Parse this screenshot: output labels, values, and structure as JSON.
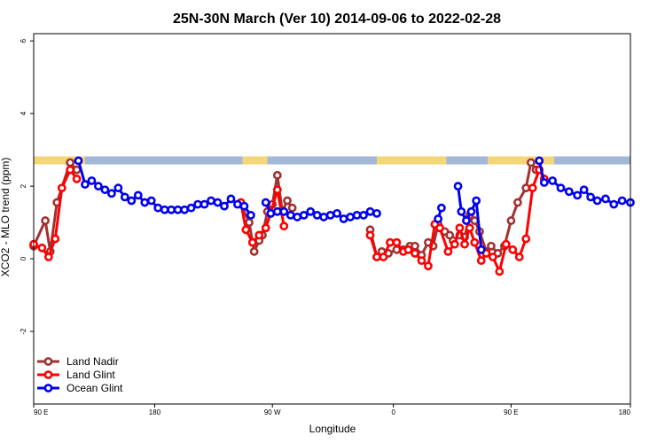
{
  "chart_data": {
    "type": "line",
    "title": "25N-30N March (Ver 10)   2014-09-06 to 2022-02-28",
    "xlabel": "Longitude",
    "ylabel": "XCO2 - MLO trend (ppm)",
    "xlim": [
      0,
      360
    ],
    "ylim": [
      -4,
      6.2
    ],
    "x_ticks": [
      {
        "value": 0,
        "label": "90 E"
      },
      {
        "value": 73,
        "label": "180"
      },
      {
        "value": 144,
        "label": "90 W"
      },
      {
        "value": 217,
        "label": "0"
      },
      {
        "value": 288,
        "label": "90 E"
      },
      {
        "value": 360,
        "label": "180"
      }
    ],
    "y_ticks": [
      {
        "value": -2,
        "label": "-2"
      },
      {
        "value": 0,
        "label": "0"
      },
      {
        "value": 2,
        "label": "2"
      },
      {
        "value": 4,
        "label": "4"
      },
      {
        "value": 6,
        "label": "6"
      }
    ],
    "legend_position": "bottom-left",
    "grid": false,
    "land_mask": {
      "y_range": [
        2.6,
        2.82
      ],
      "ocean_color": "#a2b8d8",
      "land_color": "#f5d677",
      "land_segments": [
        [
          0,
          31
        ],
        [
          126,
          141
        ],
        [
          207,
          249
        ],
        [
          274,
          314
        ]
      ]
    },
    "series": [
      {
        "name": "Land Nadir",
        "color": "#a23232",
        "segments": [
          [
            [
              0,
              0.35
            ],
            [
              7,
              1.05
            ],
            [
              10,
              0.2
            ],
            [
              14,
              1.55
            ],
            [
              22,
              2.65
            ],
            [
              26,
              2.45
            ]
          ],
          [
            [
              125,
              1.5
            ],
            [
              130,
              1.0
            ],
            [
              133,
              0.2
            ],
            [
              136,
              0.5
            ],
            [
              138,
              0.65
            ],
            [
              141,
              1.3
            ],
            [
              144,
              1.5
            ],
            [
              147,
              2.3
            ],
            [
              150,
              1.3
            ],
            [
              153,
              1.6
            ],
            [
              156,
              1.4
            ]
          ],
          [
            [
              203,
              0.8
            ],
            [
              207,
              0.05
            ],
            [
              210,
              0.2
            ],
            [
              214,
              0.15
            ],
            [
              219,
              0.25
            ],
            [
              223,
              0.25
            ],
            [
              227,
              0.35
            ],
            [
              230,
              0.35
            ],
            [
              234,
              0.1
            ],
            [
              238,
              0.45
            ],
            [
              241,
              0.35
            ],
            [
              244,
              0.95
            ],
            [
              248,
              0.75
            ],
            [
              251,
              0.65
            ],
            [
              253,
              0.5
            ],
            [
              257,
              0.65
            ],
            [
              260,
              0.6
            ],
            [
              263,
              1.2
            ],
            [
              266,
              1.05
            ],
            [
              269,
              0.75
            ],
            [
              273,
              0.2
            ],
            [
              276,
              0.35
            ],
            [
              280,
              0.15
            ],
            [
              284,
              0.35
            ],
            [
              288,
              1.05
            ],
            [
              292,
              1.55
            ],
            [
              297,
              1.95
            ],
            [
              300,
              2.65
            ],
            [
              303,
              2.45
            ]
          ]
        ]
      },
      {
        "name": "Land Glint",
        "color": "#ff0000",
        "segments": [
          [
            [
              0,
              0.4
            ],
            [
              5,
              0.3
            ],
            [
              9,
              0.05
            ],
            [
              13,
              0.55
            ],
            [
              17,
              1.95
            ],
            [
              22,
              2.45
            ],
            [
              26,
              2.2
            ]
          ],
          [
            [
              125,
              1.55
            ],
            [
              128,
              0.8
            ],
            [
              132,
              0.45
            ],
            [
              136,
              0.65
            ],
            [
              140,
              0.85
            ],
            [
              143,
              1.25
            ],
            [
              147,
              1.9
            ],
            [
              151,
              0.9
            ]
          ],
          [
            [
              203,
              0.65
            ],
            [
              207,
              0.05
            ],
            [
              211,
              0.05
            ],
            [
              215,
              0.45
            ],
            [
              219,
              0.45
            ],
            [
              223,
              0.2
            ],
            [
              226,
              0.25
            ],
            [
              230,
              0.15
            ],
            [
              234,
              -0.05
            ],
            [
              238,
              -0.2
            ],
            [
              242,
              0.95
            ],
            [
              245,
              0.85
            ],
            [
              250,
              0.2
            ],
            [
              254,
              0.4
            ],
            [
              257,
              0.85
            ],
            [
              260,
              0.4
            ],
            [
              263,
              0.85
            ],
            [
              266,
              0.45
            ],
            [
              270,
              -0.05
            ],
            [
              273,
              0.15
            ],
            [
              277,
              0.05
            ],
            [
              281,
              -0.35
            ],
            [
              285,
              0.4
            ],
            [
              289,
              0.25
            ],
            [
              293,
              0.05
            ],
            [
              297,
              0.55
            ],
            [
              301,
              1.95
            ],
            [
              305,
              2.45
            ],
            [
              308,
              2.2
            ]
          ]
        ]
      },
      {
        "name": "Ocean Glint",
        "color": "#0000ee",
        "segments": [
          [
            [
              27,
              2.7
            ],
            [
              31,
              2.05
            ],
            [
              35,
              2.15
            ],
            [
              39,
              2.0
            ],
            [
              43,
              1.9
            ],
            [
              47,
              1.8
            ],
            [
              51,
              1.95
            ],
            [
              55,
              1.7
            ],
            [
              59,
              1.6
            ],
            [
              63,
              1.75
            ],
            [
              67,
              1.55
            ],
            [
              71,
              1.6
            ],
            [
              75,
              1.4
            ],
            [
              79,
              1.35
            ],
            [
              83,
              1.35
            ],
            [
              87,
              1.35
            ],
            [
              91,
              1.35
            ],
            [
              95,
              1.4
            ],
            [
              99,
              1.5
            ],
            [
              103,
              1.5
            ],
            [
              107,
              1.6
            ],
            [
              111,
              1.55
            ],
            [
              115,
              1.45
            ],
            [
              119,
              1.65
            ],
            [
              123,
              1.5
            ],
            [
              127,
              1.45
            ],
            [
              131,
              1.2
            ]
          ],
          [
            [
              140,
              1.55
            ],
            [
              143,
              1.25
            ],
            [
              147,
              1.3
            ],
            [
              151,
              1.3
            ],
            [
              155,
              1.2
            ],
            [
              159,
              1.15
            ],
            [
              163,
              1.2
            ],
            [
              167,
              1.3
            ],
            [
              171,
              1.2
            ],
            [
              175,
              1.15
            ],
            [
              179,
              1.2
            ],
            [
              183,
              1.25
            ],
            [
              187,
              1.1
            ],
            [
              191,
              1.15
            ],
            [
              195,
              1.2
            ],
            [
              199,
              1.2
            ],
            [
              203,
              1.3
            ],
            [
              207,
              1.25
            ]
          ],
          [
            [
              244,
              1.1
            ],
            [
              246,
              1.4
            ]
          ],
          [
            [
              256,
              2.0
            ],
            [
              258,
              1.3
            ],
            [
              261,
              1.05
            ],
            [
              264,
              1.3
            ],
            [
              267,
              1.6
            ],
            [
              270,
              0.25
            ]
          ],
          [
            [
              305,
              2.7
            ],
            [
              308,
              2.1
            ],
            [
              313,
              2.15
            ],
            [
              318,
              1.95
            ],
            [
              323,
              1.85
            ],
            [
              328,
              1.75
            ],
            [
              332,
              1.9
            ],
            [
              336,
              1.7
            ],
            [
              340,
              1.6
            ],
            [
              345,
              1.65
            ],
            [
              350,
              1.5
            ],
            [
              355,
              1.6
            ],
            [
              360,
              1.55
            ]
          ]
        ]
      }
    ]
  }
}
